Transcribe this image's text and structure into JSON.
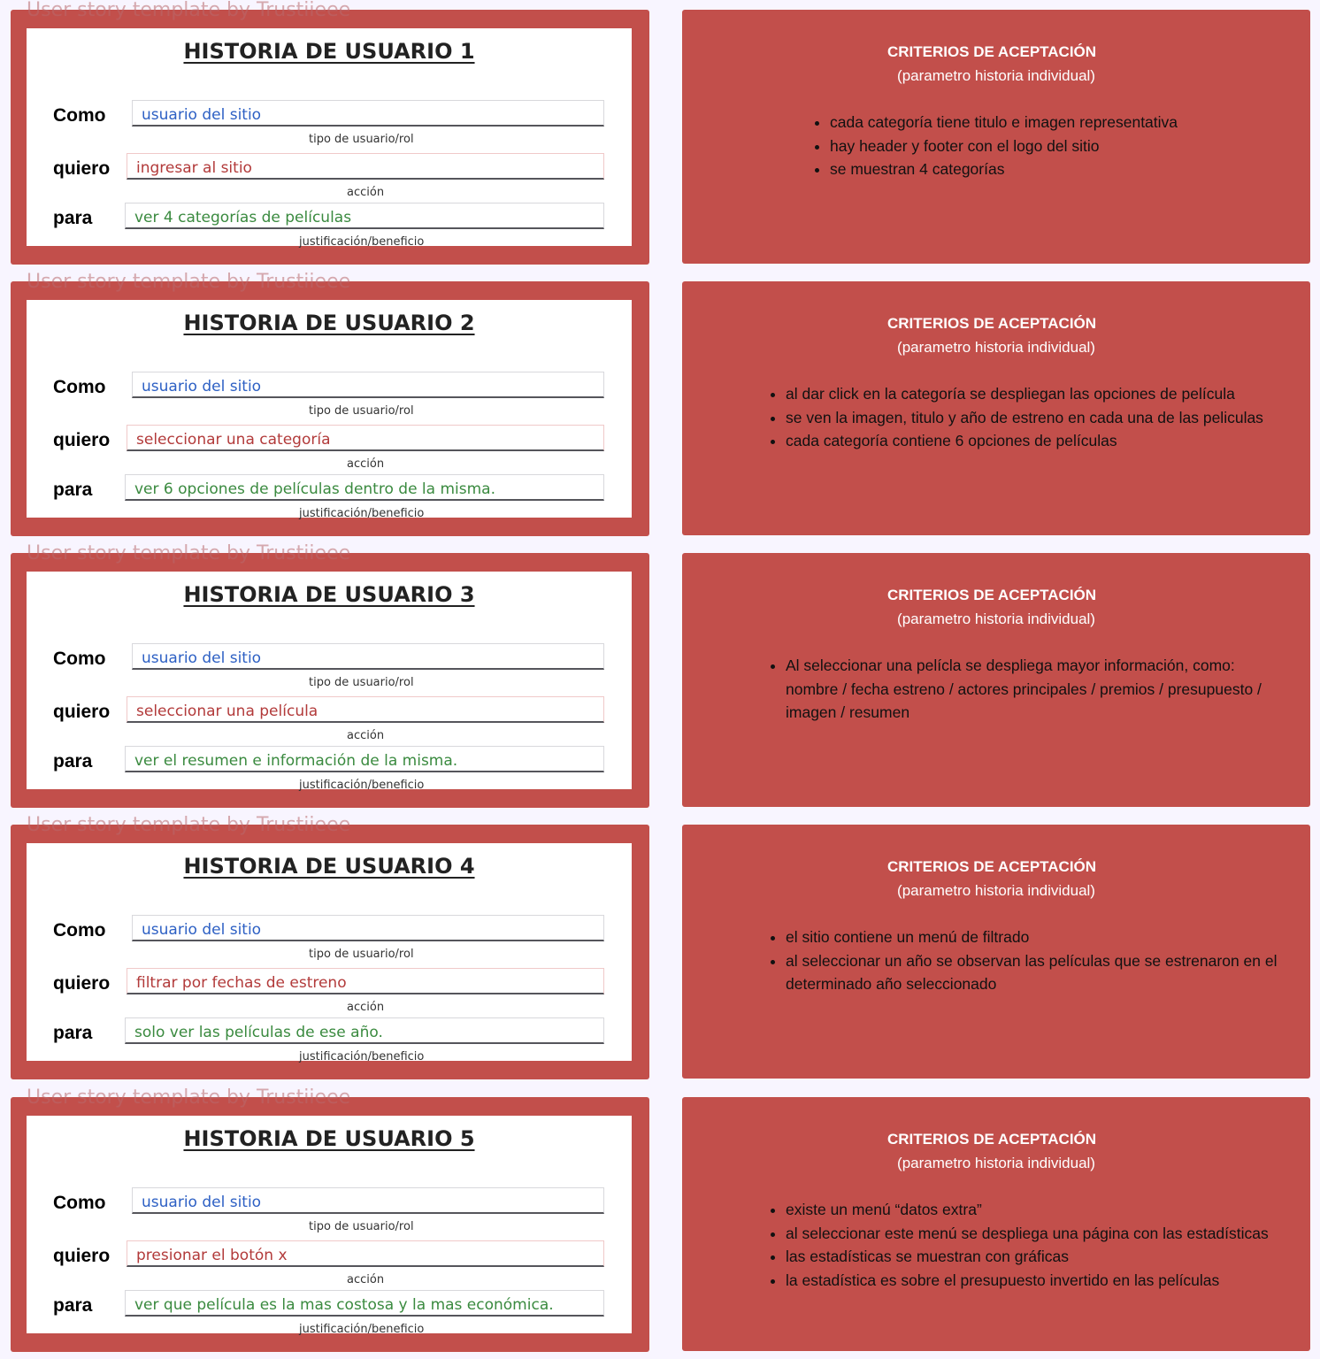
{
  "watermark": "User story template by Trustiieee",
  "labels": {
    "como": "Como",
    "quiero": "quiero",
    "para": "para",
    "hint_como": "tipo de usuario/rol",
    "hint_quiero": "acción",
    "hint_para": "justificación/beneficio"
  },
  "criteria_header": {
    "title": "CRITERIOS DE ACEPTACIÓN",
    "subtitle": "(parametro historia individual)"
  },
  "stories": [
    {
      "title": "HISTORIA DE USUARIO 1",
      "como": "usuario del sitio",
      "quiero": "ingresar al sitio",
      "para": "ver 4 categorías de películas",
      "criteria": [
        "cada categoría tiene titulo e imagen representativa",
        "hay header y footer con el logo del sitio",
        "se muestran 4 categorías"
      ]
    },
    {
      "title": "HISTORIA DE USUARIO 2",
      "como": "usuario del sitio",
      "quiero": "seleccionar una categoría",
      "para": "ver 6 opciones de películas dentro de la misma.",
      "criteria": [
        "al dar click en la categoría se despliegan las opciones de película",
        "se ven la imagen, titulo y año de estreno en cada una de las peliculas",
        "cada categoría contiene 6 opciones de películas"
      ]
    },
    {
      "title": "HISTORIA DE USUARIO 3",
      "como": "usuario del sitio",
      "quiero": "seleccionar una película",
      "para": "ver el resumen e información de la misma.",
      "criteria": [
        "Al seleccionar una pelícla se despliega mayor información, como: nombre / fecha estreno / actores principales / premios / presupuesto / imagen / resumen"
      ]
    },
    {
      "title": "HISTORIA DE USUARIO 4",
      "como": "usuario del sitio",
      "quiero": "filtrar por fechas de estreno",
      "para": "solo ver las películas de ese año.",
      "criteria": [
        "el sitio contiene un menú de filtrado",
        "al seleccionar un año se observan las películas que se estrenaron en el determinado año seleccionado"
      ]
    },
    {
      "title": "HISTORIA DE USUARIO 5",
      "como": "usuario del sitio",
      "quiero": "presionar el botón x",
      "para": "ver que película es la mas costosa y la mas económica.",
      "criteria": [
        "existe un menú “datos extra”",
        "al seleccionar este menú se despliega una página con las estadísticas",
        "las estadísticas se muestran con gráficas",
        "la estadística es sobre el presupuesto invertido en las películas"
      ]
    }
  ]
}
